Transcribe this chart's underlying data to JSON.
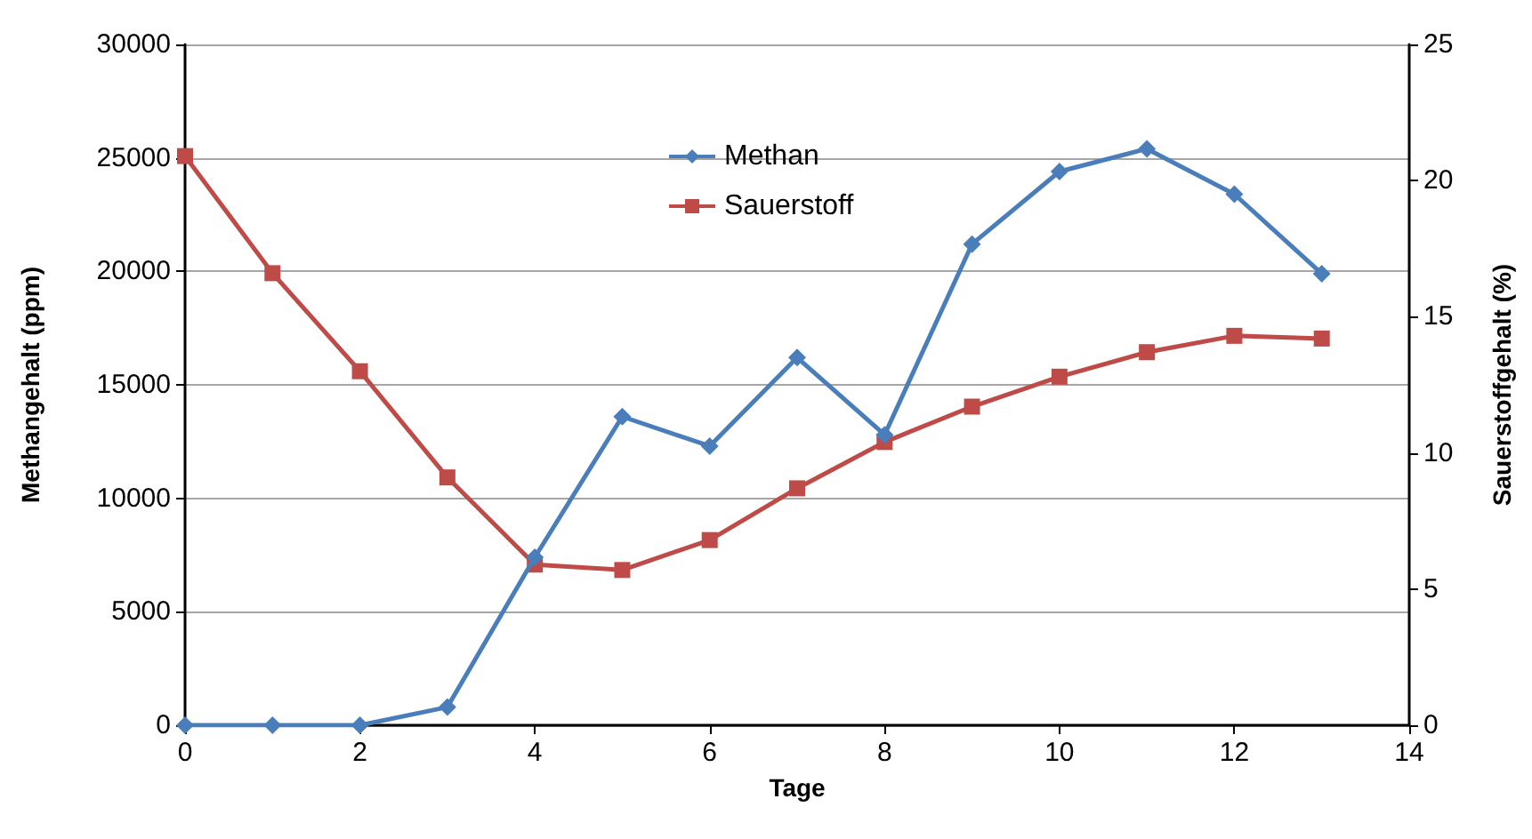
{
  "chart_data": {
    "type": "line",
    "xlabel": "Tage",
    "ylabel": "Methangehalt (ppm)",
    "y2label": "Sauerstoffgehalt (%)",
    "x": [
      0,
      1,
      2,
      3,
      4,
      5,
      6,
      7,
      8,
      9,
      10,
      11,
      12,
      13
    ],
    "series": [
      {
        "name": "Methan",
        "color": "#4a7ebb",
        "marker": "diamond",
        "values": [
          0,
          0,
          0,
          800,
          7400,
          13600,
          12300,
          16200,
          12800,
          21200,
          24400,
          25400,
          23400,
          19900
        ]
      },
      {
        "name": "Sauerstoff",
        "color": "#be4b48",
        "marker": "square",
        "axis": "y2",
        "values": [
          20.9,
          16.6,
          13.0,
          9.1,
          5.9,
          5.7,
          6.8,
          8.7,
          10.4,
          11.7,
          12.8,
          13.7,
          14.3,
          14.2
        ]
      }
    ],
    "xlim": [
      0,
      14
    ],
    "xticks": [
      0,
      2,
      4,
      6,
      8,
      10,
      12,
      14
    ],
    "ylim": [
      0,
      30000
    ],
    "yticks": [
      0,
      5000,
      10000,
      15000,
      20000,
      25000,
      30000
    ],
    "y2lim": [
      0,
      25
    ],
    "y2ticks": [
      0,
      5,
      10,
      15,
      20,
      25
    ],
    "grid": "y",
    "legend": "top",
    "line_style": "solid"
  }
}
